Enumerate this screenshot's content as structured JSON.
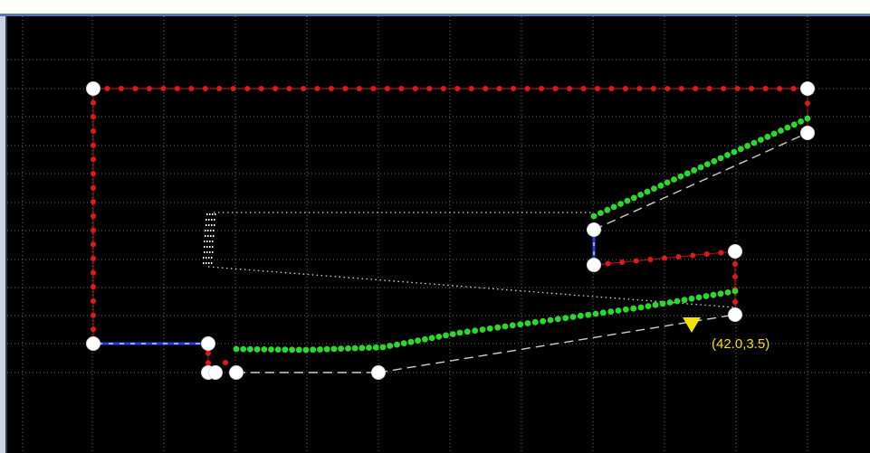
{
  "canvas": {
    "background": "#000000",
    "grid_color": "#6b6b6b",
    "frame_color": "#5a78b8"
  },
  "colors": {
    "red_dots": "#e11919",
    "green_dots": "#2bd92b",
    "blue_segment": "#2a3be8",
    "node_fill": "#ffffff",
    "dashed_line": "#cfcfcf",
    "marker": "#f2e100",
    "label": "#f2e100"
  },
  "annotation": {
    "label": "(42.0,3.5)",
    "marker_icon": "triangle-down-marker"
  }
}
